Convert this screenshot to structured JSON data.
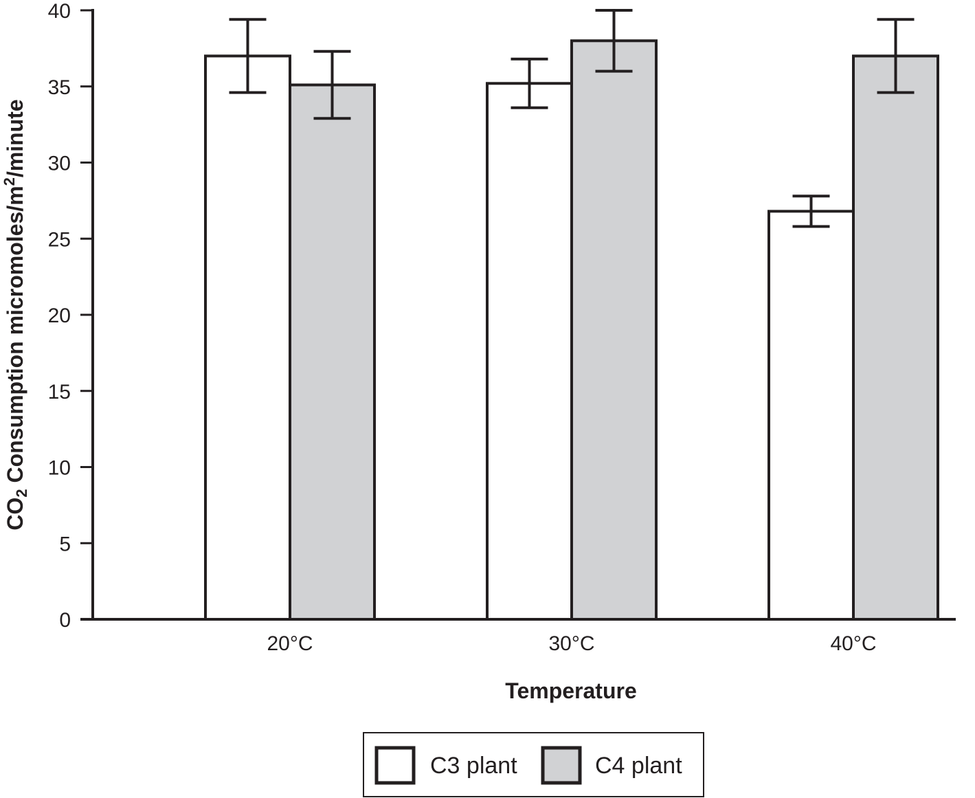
{
  "chart_data": {
    "type": "bar",
    "categories": [
      "20°C",
      "30°C",
      "40°C"
    ],
    "series": [
      {
        "name": "C3 plant",
        "values": [
          37,
          35.2,
          26.8
        ],
        "errors": [
          2.4,
          1.6,
          1.0
        ],
        "color": "#ffffff"
      },
      {
        "name": "C4 plant",
        "values": [
          35.1,
          38,
          37
        ],
        "errors": [
          2.2,
          2.0,
          2.4
        ],
        "color": "#d1d2d4"
      }
    ],
    "yticks": [
      "0",
      "5",
      "10",
      "15",
      "20",
      "25",
      "30",
      "35",
      "40"
    ],
    "xlabel": "Temperature",
    "ylabel": {
      "prefix": "CO",
      "sub": "2",
      "middle": " Consumption micromoles/m",
      "sup": "2",
      "suffix": "/minute"
    },
    "ylim": [
      0,
      40
    ],
    "grid": false,
    "legend_position": "bottom-center",
    "stroke_color": "#231f20"
  }
}
